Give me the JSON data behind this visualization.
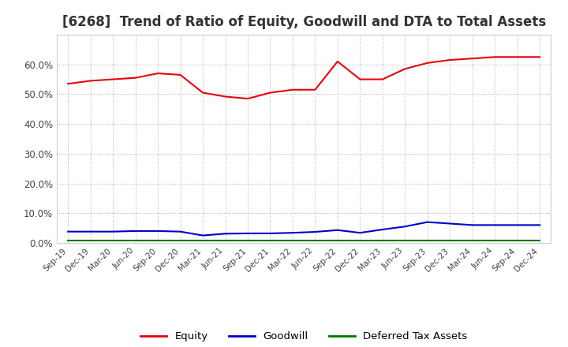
{
  "title": "[6268]  Trend of Ratio of Equity, Goodwill and DTA to Total Assets",
  "title_fontsize": 12,
  "x_labels": [
    "Sep-19",
    "Dec-19",
    "Mar-20",
    "Jun-20",
    "Sep-20",
    "Dec-20",
    "Mar-21",
    "Jun-21",
    "Sep-21",
    "Dec-21",
    "Mar-22",
    "Jun-22",
    "Sep-22",
    "Dec-22",
    "Mar-23",
    "Jun-23",
    "Sep-23",
    "Dec-23",
    "Mar-24",
    "Jun-24",
    "Sep-24",
    "Dec-24"
  ],
  "equity": [
    53.5,
    54.5,
    55.0,
    55.5,
    57.0,
    56.5,
    50.5,
    49.2,
    48.5,
    50.5,
    51.5,
    51.5,
    61.0,
    55.0,
    55.0,
    58.5,
    60.5,
    61.5,
    62.0,
    62.5,
    62.5,
    62.5
  ],
  "goodwill": [
    3.8,
    3.8,
    3.8,
    4.0,
    4.0,
    3.8,
    2.5,
    3.1,
    3.2,
    3.2,
    3.4,
    3.7,
    4.3,
    3.4,
    4.5,
    5.5,
    7.0,
    6.5,
    6.0,
    6.0,
    6.0,
    6.0
  ],
  "dta": [
    0.8,
    0.8,
    0.8,
    0.8,
    0.8,
    0.8,
    0.8,
    0.8,
    0.8,
    0.8,
    0.8,
    0.8,
    0.8,
    0.8,
    0.8,
    0.8,
    0.8,
    0.8,
    0.8,
    0.8,
    0.8,
    0.8
  ],
  "equity_color": "#e8000d",
  "goodwill_color": "#0000cc",
  "dta_color": "#007700",
  "ylim": [
    0,
    70
  ],
  "yticks": [
    0,
    10,
    20,
    30,
    40,
    50,
    60
  ],
  "ytick_labels": [
    "0.0%",
    "10.0%",
    "20.0%",
    "30.0%",
    "40.0%",
    "50.0%",
    "60.0%"
  ],
  "bg_color": "#ffffff",
  "plot_bg_color": "#ffffff",
  "grid_color": "#aaaaaa",
  "legend_labels": [
    "Equity",
    "Goodwill",
    "Deferred Tax Assets"
  ],
  "linewidth": 1.5
}
